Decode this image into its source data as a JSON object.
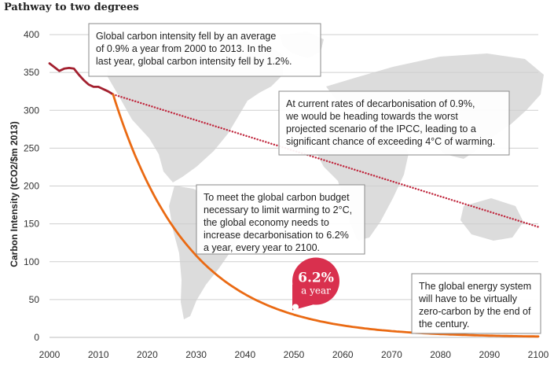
{
  "chart_data": {
    "type": "line",
    "title": "Pathway to two degrees",
    "ylabel": "Carbon Intensity (tCO2/$m 2013)",
    "xlabel": "",
    "xlim": [
      2000,
      2100
    ],
    "ylim": [
      0,
      400
    ],
    "x_ticks": [
      2000,
      2010,
      2020,
      2030,
      2040,
      2050,
      2060,
      2070,
      2080,
      2090,
      2100
    ],
    "y_ticks": [
      0,
      50,
      100,
      150,
      200,
      250,
      300,
      350,
      400
    ],
    "grid": true,
    "series": [
      {
        "key": "historical",
        "color": "#a3202f",
        "style": "solid",
        "points": [
          [
            2000,
            362
          ],
          [
            2001,
            357
          ],
          [
            2002,
            352
          ],
          [
            2003,
            355
          ],
          [
            2004,
            356
          ],
          [
            2005,
            355
          ],
          [
            2006,
            347
          ],
          [
            2007,
            340
          ],
          [
            2008,
            334
          ],
          [
            2009,
            331
          ],
          [
            2010,
            331
          ],
          [
            2011,
            328
          ],
          [
            2012,
            325
          ],
          [
            2013,
            321
          ]
        ]
      },
      {
        "key": "current_rate",
        "color": "#c0283e",
        "style": "dotted",
        "points": [
          [
            2013,
            321
          ],
          [
            2100,
            146
          ]
        ]
      },
      {
        "key": "two_degree_path",
        "color": "#ea6a13",
        "style": "solid",
        "start": [
          2013,
          321
        ],
        "annual_decline": 0.062,
        "end_year": 2100
      }
    ],
    "annotations": [
      {
        "key": "historical_note",
        "lines": [
          "Global carbon intensity fell by an average",
          "of 0.9% a year from 2000 to 2013. In the",
          "last year, global carbon intensity fell by 1.2%."
        ]
      },
      {
        "key": "current_rate_note",
        "lines": [
          "At current rates of decarbonisation of 0.9%,",
          "we would be heading towards the worst",
          "projected scenario of the IPCC, leading to a",
          "significant chance of exceeding 4°C of warming."
        ]
      },
      {
        "key": "budget_note",
        "lines": [
          "To meet the global carbon budget",
          "necessary to limit warming to 2°C,",
          "the global economy needs to",
          "increase decarbonisation to 6.2%",
          "a year, every year to 2100."
        ]
      },
      {
        "key": "zero_carbon_note",
        "lines": [
          "The global energy system",
          "will have to be virtually",
          "zero-carbon by the end of",
          "the century."
        ]
      }
    ],
    "callout": {
      "value": "6.2%",
      "label": "a year",
      "anchor": [
        2050,
        40
      ],
      "color": "#d9304e"
    }
  }
}
